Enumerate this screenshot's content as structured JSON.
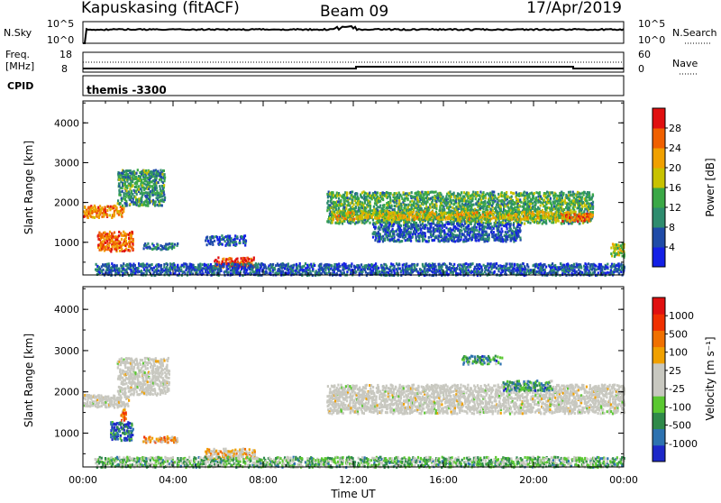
{
  "header": {
    "station": "Kapuskasing (fitACF)",
    "beam": "Beam 09",
    "date": "17/Apr/2019"
  },
  "top_panels": {
    "nsky_label": "N.Sky",
    "nsky_ticks": [
      "10^5",
      "10^0"
    ],
    "nsearch_label": "N.Search",
    "nsearch_ticks": [
      "10^5",
      "10^0"
    ],
    "freq_label_1": "Freq.",
    "freq_label_2": "[MHz]",
    "freq_ticks": [
      "18",
      "8"
    ],
    "nave_label": "Nave",
    "nave_ticks": [
      "60",
      "0"
    ],
    "cpid_label": "CPID",
    "cpid_value": "themis -3300"
  },
  "colors": {
    "power_scale": [
      "#1420e6",
      "#1f4ba8",
      "#2e8c6e",
      "#3aa846",
      "#c8c200",
      "#f0a000",
      "#f06000",
      "#e01010"
    ],
    "velocity_scale": [
      "#1d28c8",
      "#2d72b0",
      "#2f8a4a",
      "#5ac831",
      "#c8c8c0",
      "#c8c8c0",
      "#f0a000",
      "#f07000",
      "#f03000",
      "#e01010"
    ],
    "ground_scatter": "#c8c8c0"
  },
  "chart_data": [
    {
      "type": "heatmap",
      "panel": "power",
      "ylabel": "Slant Range [km]",
      "yticks": [
        "1000",
        "2000",
        "3000",
        "4000"
      ],
      "ylim": [
        180,
        4550
      ],
      "xlim": [
        0,
        24
      ],
      "xticks": [
        "00:00",
        "04:00",
        "08:00",
        "12:00",
        "16:00",
        "20:00",
        "00:00"
      ],
      "colorbar_label": "Power [dB]",
      "colorbar_ticks": [
        "4",
        "8",
        "12",
        "16",
        "20",
        "24",
        "28"
      ],
      "colorbar_range": [
        0,
        30
      ],
      "regions": [
        {
          "t0": 0.0,
          "t1": 1.8,
          "r0": 1650,
          "r1": 1950,
          "level": 0.75
        },
        {
          "t0": 0.6,
          "t1": 2.2,
          "r0": 800,
          "r1": 1300,
          "level": 0.8
        },
        {
          "t0": 1.5,
          "t1": 3.6,
          "r0": 1950,
          "r1": 2850,
          "level": 0.35
        },
        {
          "t0": 2.6,
          "t1": 4.2,
          "r0": 850,
          "r1": 1000,
          "level": 0.25
        },
        {
          "t0": 5.4,
          "t1": 7.2,
          "r0": 950,
          "r1": 1200,
          "level": 0.2
        },
        {
          "t0": 5.8,
          "t1": 7.6,
          "r0": 400,
          "r1": 650,
          "level": 0.9
        },
        {
          "t0": 0.5,
          "t1": 24.0,
          "r0": 200,
          "r1": 500,
          "level": 0.2
        },
        {
          "t0": 10.8,
          "t1": 22.6,
          "r0": 1500,
          "r1": 2300,
          "level": 0.4
        },
        {
          "t0": 11.0,
          "t1": 21.8,
          "r0": 1600,
          "r1": 1800,
          "level": 0.6
        },
        {
          "t0": 21.2,
          "t1": 22.6,
          "r0": 1550,
          "r1": 1750,
          "level": 0.8
        },
        {
          "t0": 12.8,
          "t1": 19.4,
          "r0": 1050,
          "r1": 1500,
          "level": 0.2
        },
        {
          "t0": 23.4,
          "t1": 24.0,
          "r0": 650,
          "r1": 1000,
          "level": 0.5
        }
      ]
    },
    {
      "type": "heatmap",
      "panel": "velocity",
      "ylabel": "Slant Range [km]",
      "yticks": [
        "1000",
        "2000",
        "3000",
        "4000"
      ],
      "ylim": [
        180,
        4550
      ],
      "xlim": [
        0,
        24
      ],
      "xticks": [
        "00:00",
        "04:00",
        "08:00",
        "12:00",
        "16:00",
        "20:00",
        "00:00"
      ],
      "xlabel": "Time UT",
      "colorbar_label": "Velocity [m s⁻¹]",
      "colorbar_ticks": [
        "1000",
        "500",
        "100",
        "25",
        "-25",
        "-100",
        "-500",
        "-1000"
      ],
      "colorbar_range": [
        -1000,
        1000
      ],
      "regions": [
        {
          "t0": 0.0,
          "t1": 2.0,
          "r0": 1650,
          "r1": 1950,
          "level": 0.5
        },
        {
          "t0": 1.5,
          "t1": 3.8,
          "r0": 1950,
          "r1": 2850,
          "level": 0.5
        },
        {
          "t0": 1.2,
          "t1": 2.2,
          "r0": 850,
          "r1": 1300,
          "level": 0.15
        },
        {
          "t0": 1.6,
          "t1": 1.9,
          "r0": 1300,
          "r1": 1600,
          "level": 0.75
        },
        {
          "t0": 2.6,
          "t1": 4.2,
          "r0": 800,
          "r1": 950,
          "level": 0.65
        },
        {
          "t0": 5.4,
          "t1": 7.6,
          "r0": 400,
          "r1": 650,
          "level": 0.6
        },
        {
          "t0": 0.5,
          "t1": 24.0,
          "r0": 200,
          "r1": 450,
          "level": 0.35
        },
        {
          "t0": 10.8,
          "t1": 24.0,
          "r0": 1500,
          "r1": 2200,
          "level": 0.5
        },
        {
          "t0": 18.6,
          "t1": 20.8,
          "r0": 2050,
          "r1": 2300,
          "level": 0.25
        },
        {
          "t0": 16.8,
          "t1": 18.6,
          "r0": 2700,
          "r1": 2900,
          "level": 0.25
        }
      ]
    }
  ]
}
